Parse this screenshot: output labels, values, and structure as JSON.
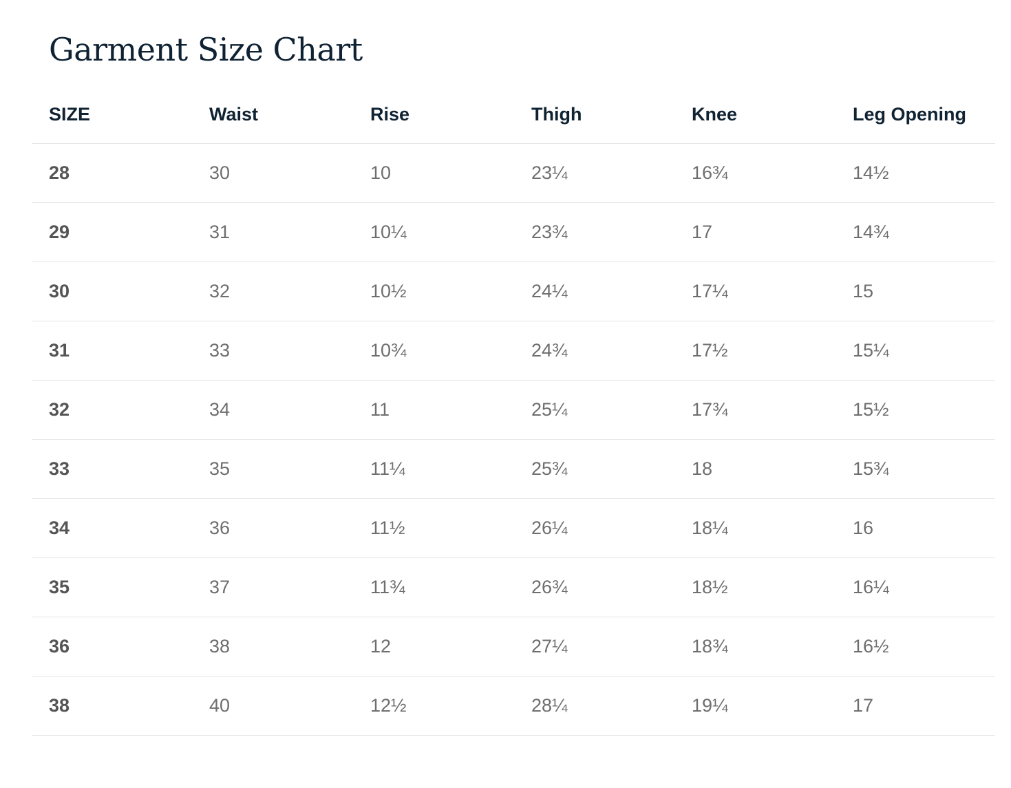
{
  "title": "Garment Size Chart",
  "columns": [
    "SIZE",
    "Waist",
    "Rise",
    "Thigh",
    "Knee",
    "Leg Opening"
  ],
  "rows": [
    [
      "28",
      "30",
      "10",
      "23¼",
      "16¾",
      "14½"
    ],
    [
      "29",
      "31",
      "10¼",
      "23¾",
      "17",
      "14¾"
    ],
    [
      "30",
      "32",
      "10½",
      "24¼",
      "17¼",
      "15"
    ],
    [
      "31",
      "33",
      "10¾",
      "24¾",
      "17½",
      "15¼"
    ],
    [
      "32",
      "34",
      "11",
      "25¼",
      "17¾",
      "15½"
    ],
    [
      "33",
      "35",
      "11¼",
      "25¾",
      "18",
      "15¾"
    ],
    [
      "34",
      "36",
      "11½",
      "26¼",
      "18¼",
      "16"
    ],
    [
      "35",
      "37",
      "11¾",
      "26¾",
      "18½",
      "16¼"
    ],
    [
      "36",
      "38",
      "12",
      "27¼",
      "18¾",
      "16½"
    ],
    [
      "38",
      "40",
      "12½",
      "28¼",
      "19¼",
      "17"
    ]
  ]
}
